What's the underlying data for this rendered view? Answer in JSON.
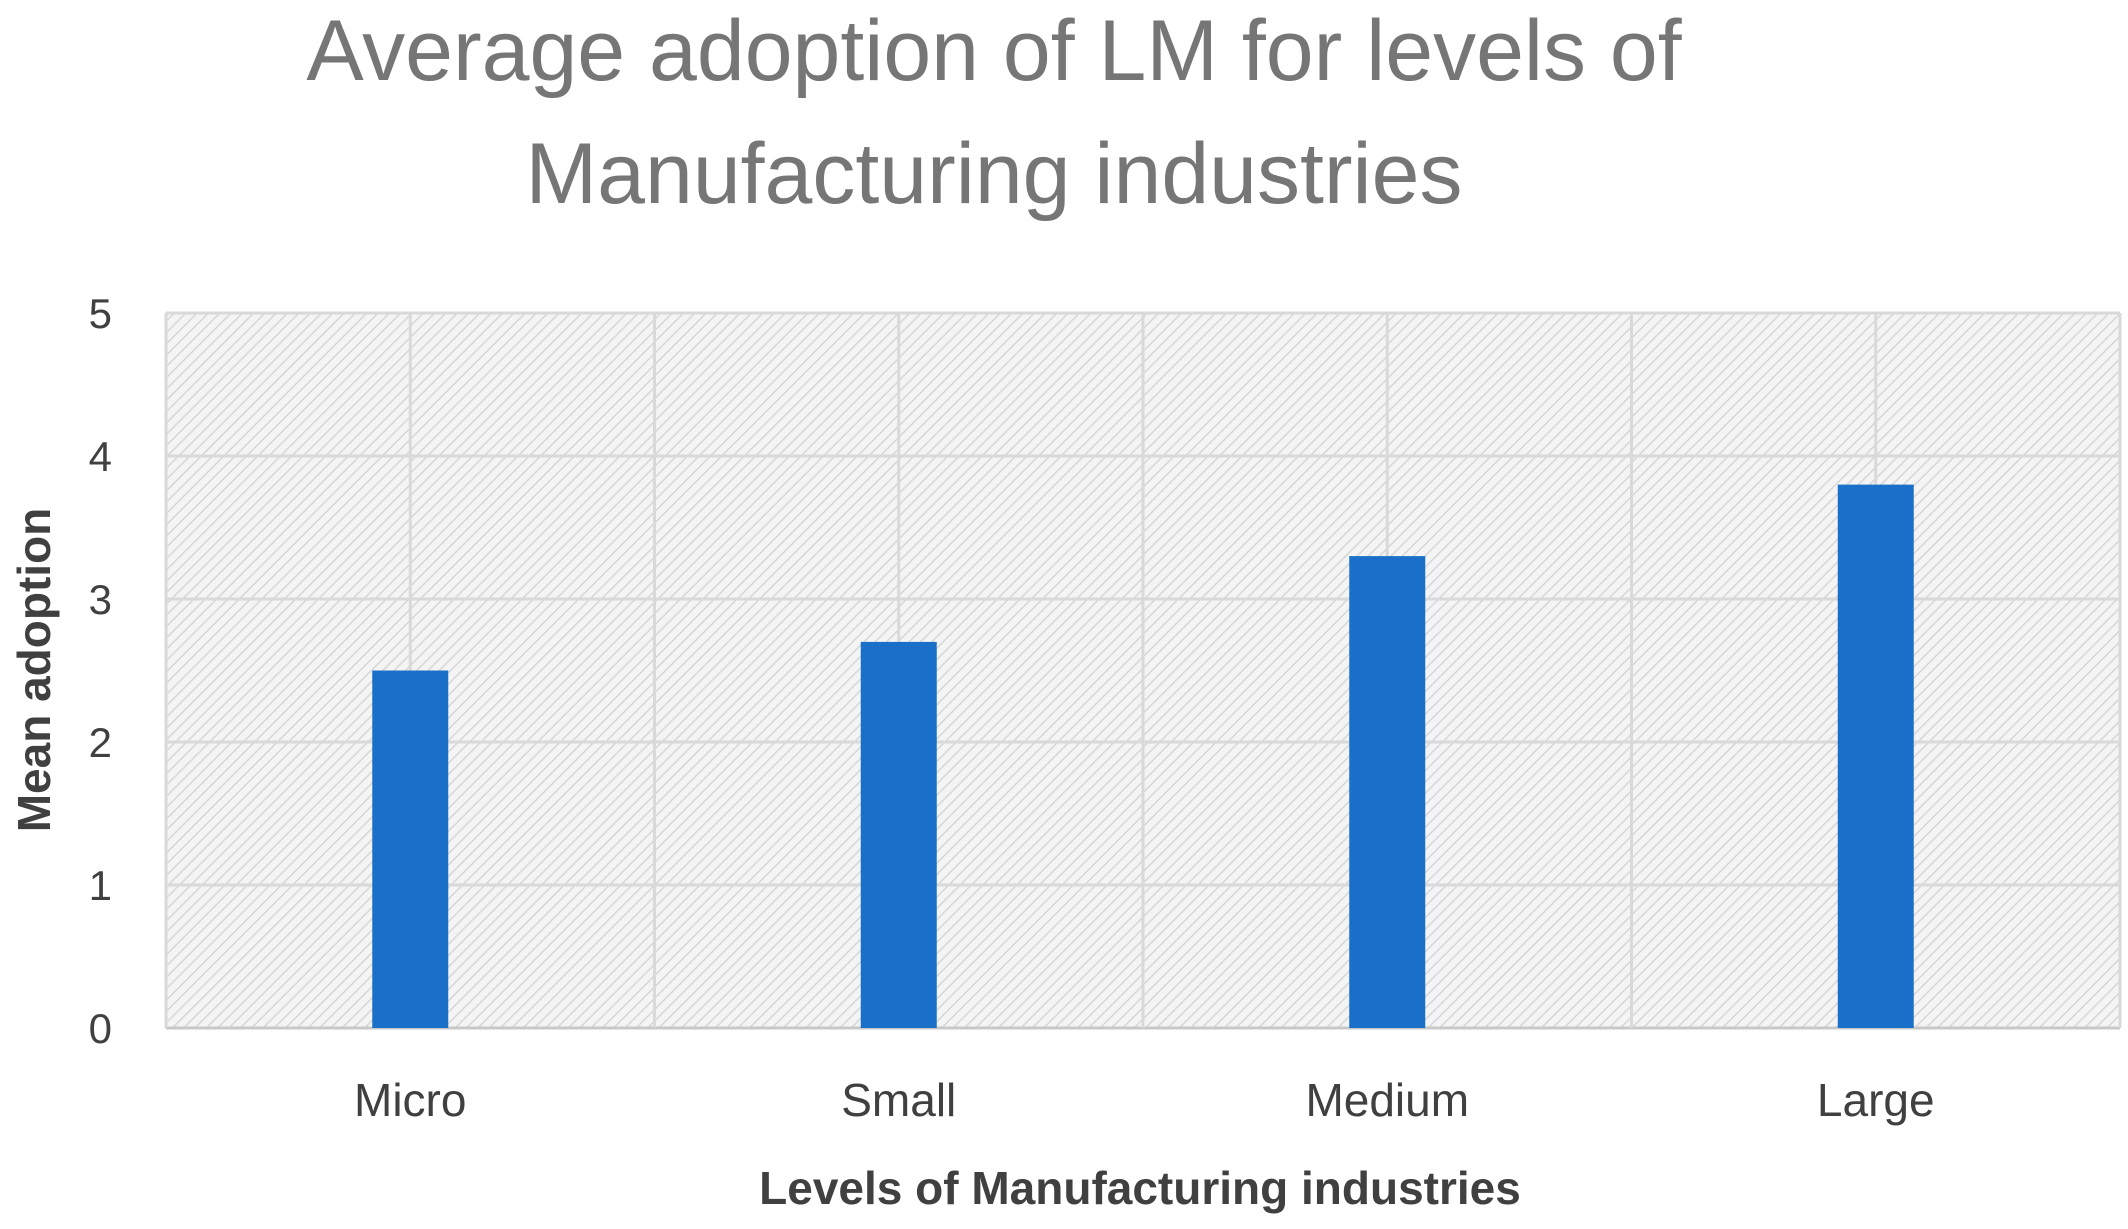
{
  "chart_data": {
    "type": "bar",
    "title": "Average adoption of LM for levels of Manufacturing industries",
    "title_lines": [
      "Average adoption of LM for levels of",
      "Manufacturing industries"
    ],
    "categories": [
      "Micro",
      "Small",
      "Medium",
      "Large"
    ],
    "values": [
      2.5,
      2.7,
      3.3,
      3.8
    ],
    "xlabel": "Levels of Manufacturing industries",
    "ylabel": "Mean adoption",
    "ylim": [
      0,
      5
    ],
    "yticks": [
      "0",
      "1",
      "2",
      "3",
      "4",
      "5"
    ],
    "grid": true,
    "legend": "none",
    "bar_color": "#1a70c8",
    "plot_background": "hatched light gray"
  }
}
